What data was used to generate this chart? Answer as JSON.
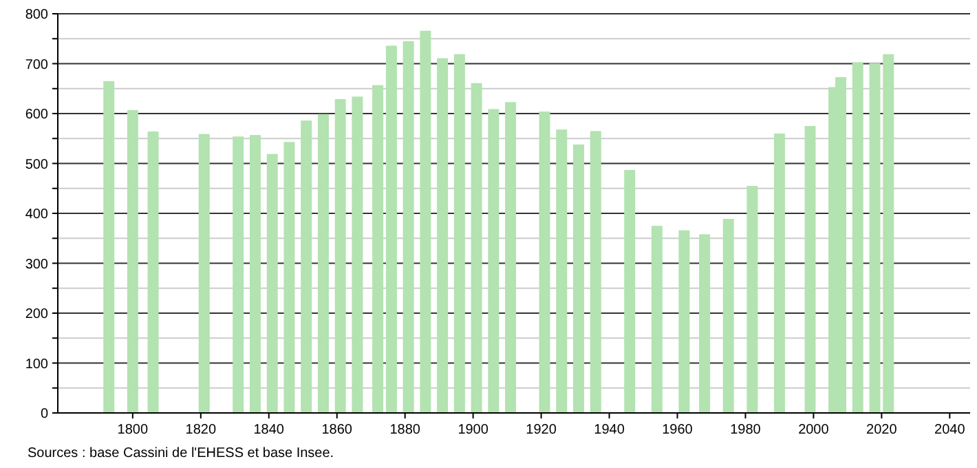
{
  "chart_data": {
    "type": "bar",
    "x": [
      1793,
      1800,
      1806,
      1821,
      1831,
      1836,
      1841,
      1846,
      1851,
      1856,
      1861,
      1866,
      1872,
      1876,
      1881,
      1886,
      1891,
      1896,
      1901,
      1906,
      1911,
      1921,
      1926,
      1931,
      1936,
      1946,
      1954,
      1962,
      1968,
      1975,
      1982,
      1990,
      1999,
      2006,
      2008,
      2013,
      2018,
      2022
    ],
    "values": [
      665,
      607,
      564,
      559,
      554,
      557,
      519,
      543,
      586,
      599,
      629,
      634,
      657,
      736,
      745,
      766,
      711,
      719,
      661,
      609,
      623,
      604,
      568,
      538,
      565,
      487,
      375,
      366,
      358,
      389,
      455,
      560,
      575,
      653,
      673,
      703,
      701,
      719
    ],
    "color": "#b3e3b0",
    "xlim": [
      1778,
      2046
    ],
    "xticks": [
      1800,
      1820,
      1840,
      1860,
      1880,
      1900,
      1920,
      1940,
      1960,
      1980,
      2000,
      2020,
      2040
    ],
    "ylim": [
      0,
      800
    ],
    "yticks": [
      0,
      {
        "value": 50,
        "label": null
      },
      100,
      {
        "value": 150,
        "label": null
      },
      200,
      {
        "value": 250,
        "label": null
      },
      300,
      {
        "value": 350,
        "label": null
      },
      400,
      {
        "value": 450,
        "label": null
      },
      500,
      {
        "value": 550,
        "label": null
      },
      600,
      {
        "value": 650,
        "label": null
      },
      700,
      {
        "value": 750,
        "label": null
      },
      800
    ],
    "grid": "y",
    "annotations": [
      "Sources : base Cassini de l'EHESS et base Insee."
    ]
  }
}
